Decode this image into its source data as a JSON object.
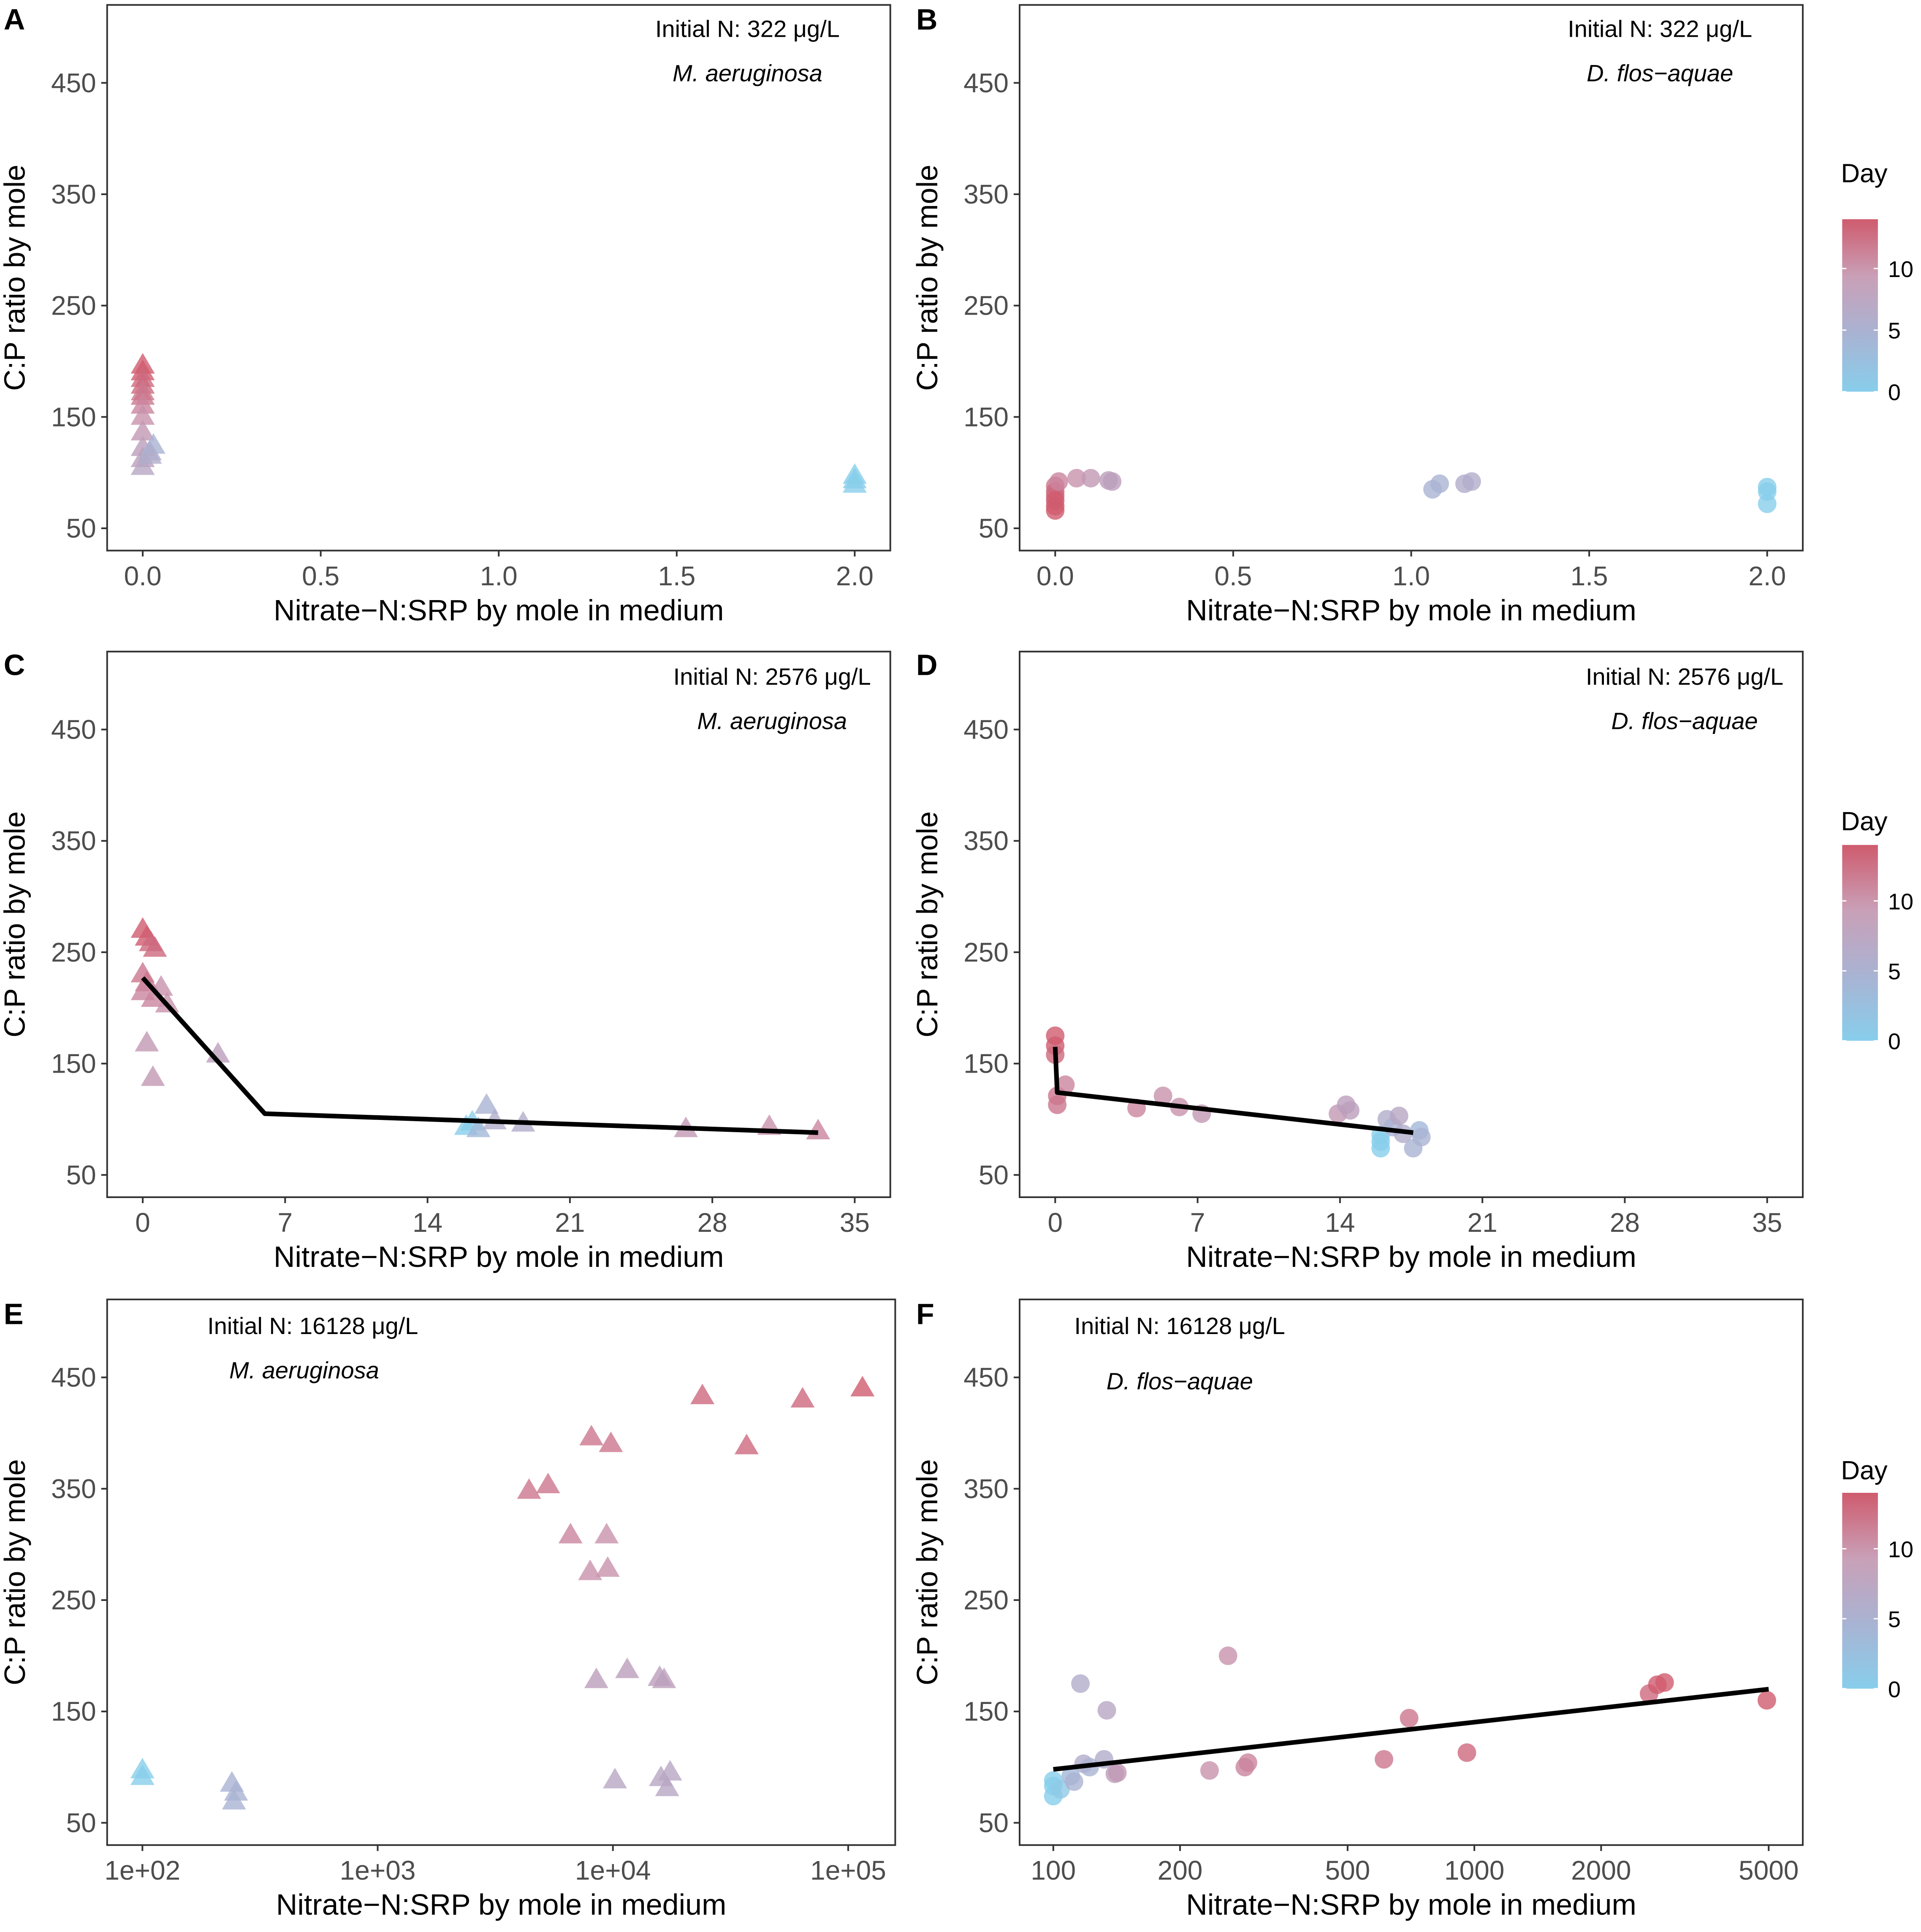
{
  "figure": {
    "legend_title": "Day",
    "legend_ticks": [
      "0",
      "5",
      "10"
    ],
    "legend_colors": [
      "#87ceeb",
      "#a9b3d3",
      "#c9a0b7",
      "#cf5b6e"
    ],
    "axis_color": "#333333",
    "line_color": "#000000"
  },
  "chart_data": [
    {
      "id": "A",
      "type": "scatter",
      "marker": "triangle",
      "x_scale": "linear",
      "xlim": [
        -0.1,
        2.1
      ],
      "ylim": [
        30,
        520
      ],
      "xticks": [
        0,
        0.5,
        1,
        1.5,
        2
      ],
      "xtick_labels": [
        "0.0",
        "0.5",
        "1.0",
        "1.5",
        "2.0"
      ],
      "yticks": [
        50,
        150,
        250,
        350,
        450
      ],
      "ytick_labels": [
        "50",
        "150",
        "250",
        "350",
        "450"
      ],
      "xlabel": "Nitrate−N:SRP by mole in medium",
      "ylabel": "C:P ratio by mole",
      "annotation_n": "Initial N: 322 μg/L",
      "annotation_species": "M. aeruginosa",
      "points": [
        [
          0.0,
          196,
          14
        ],
        [
          0.0,
          190,
          14
        ],
        [
          0.0,
          184,
          13
        ],
        [
          0.0,
          178,
          13
        ],
        [
          0.0,
          172,
          12
        ],
        [
          0.0,
          168,
          12
        ],
        [
          0.0,
          160,
          11
        ],
        [
          0.0,
          150,
          10
        ],
        [
          0.0,
          136,
          9
        ],
        [
          0.0,
          122,
          8
        ],
        [
          0.0,
          112,
          8
        ],
        [
          0.0,
          105,
          7
        ],
        [
          0.02,
          118,
          6
        ],
        [
          0.03,
          124,
          5
        ],
        [
          0.02,
          115,
          6
        ],
        [
          2.0,
          97,
          0
        ],
        [
          2.0,
          93,
          0
        ],
        [
          2.0,
          89,
          0
        ]
      ],
      "fit_line": []
    },
    {
      "id": "B",
      "type": "scatter",
      "marker": "circle",
      "x_scale": "linear",
      "xlim": [
        -0.1,
        2.1
      ],
      "ylim": [
        30,
        520
      ],
      "xticks": [
        0,
        0.5,
        1,
        1.5,
        2
      ],
      "xtick_labels": [
        "0.0",
        "0.5",
        "1.0",
        "1.5",
        "2.0"
      ],
      "yticks": [
        50,
        150,
        250,
        350,
        450
      ],
      "ytick_labels": [
        "50",
        "150",
        "250",
        "350",
        "450"
      ],
      "xlabel": "Nitrate−N:SRP by mole in medium",
      "ylabel": "C:P ratio by mole",
      "annotation_n": "Initial N: 322 μg/L",
      "annotation_species": "D. flos−aquae",
      "points": [
        [
          0.0,
          88,
          12
        ],
        [
          0.0,
          83,
          13
        ],
        [
          0.0,
          79,
          13
        ],
        [
          0.0,
          75,
          14
        ],
        [
          0.0,
          70,
          14
        ],
        [
          0.0,
          66,
          14
        ],
        [
          0.01,
          92,
          11
        ],
        [
          0.06,
          95,
          10
        ],
        [
          0.1,
          95,
          9
        ],
        [
          0.15,
          93,
          8
        ],
        [
          0.16,
          92,
          8
        ],
        [
          1.06,
          85,
          5
        ],
        [
          1.08,
          90,
          5
        ],
        [
          1.15,
          90,
          6
        ],
        [
          1.17,
          92,
          6
        ],
        [
          2.0,
          87,
          0
        ],
        [
          2.0,
          83,
          0
        ],
        [
          2.0,
          72,
          0
        ]
      ],
      "fit_line": []
    },
    {
      "id": "C",
      "type": "scatter",
      "marker": "triangle",
      "x_scale": "linear",
      "xlim": [
        -1.75,
        36.75
      ],
      "ylim": [
        30,
        520
      ],
      "xticks": [
        0,
        7,
        14,
        21,
        28,
        35
      ],
      "xtick_labels": [
        "0",
        "7",
        "14",
        "21",
        "28",
        "35"
      ],
      "yticks": [
        50,
        150,
        250,
        350,
        450
      ],
      "ytick_labels": [
        "50",
        "150",
        "250",
        "350",
        "450"
      ],
      "xlabel": "Nitrate−N:SRP by mole in medium",
      "ylabel": "C:P ratio by mole",
      "annotation_n": "Initial N: 2576 μg/L",
      "annotation_species": "M. aeruginosa",
      "points": [
        [
          0.0,
          270,
          14
        ],
        [
          0.2,
          263,
          14
        ],
        [
          0.4,
          258,
          13
        ],
        [
          0.6,
          253,
          13
        ],
        [
          0.0,
          230,
          12
        ],
        [
          0.2,
          222,
          12
        ],
        [
          0.0,
          214,
          11
        ],
        [
          0.5,
          208,
          11
        ],
        [
          0.9,
          218,
          10
        ],
        [
          1.2,
          203,
          10
        ],
        [
          0.2,
          168,
          9
        ],
        [
          0.5,
          137,
          9
        ],
        [
          3.7,
          158,
          8
        ],
        [
          15.9,
          93,
          0
        ],
        [
          16.2,
          97,
          0
        ],
        [
          16.5,
          91,
          4
        ],
        [
          16.9,
          112,
          5
        ],
        [
          17.3,
          98,
          6
        ],
        [
          18.7,
          96,
          6
        ],
        [
          26.7,
          91,
          9
        ],
        [
          30.8,
          93,
          10
        ],
        [
          33.2,
          89,
          11
        ]
      ],
      "fit_line": [
        [
          0,
          227
        ],
        [
          6,
          105
        ],
        [
          33.2,
          88
        ]
      ]
    },
    {
      "id": "D",
      "type": "scatter",
      "marker": "circle",
      "x_scale": "linear",
      "xlim": [
        -1.75,
        36.75
      ],
      "ylim": [
        30,
        520
      ],
      "xticks": [
        0,
        7,
        14,
        21,
        28,
        35
      ],
      "xtick_labels": [
        "0",
        "7",
        "14",
        "21",
        "28",
        "35"
      ],
      "yticks": [
        50,
        150,
        250,
        350,
        450
      ],
      "ytick_labels": [
        "50",
        "150",
        "250",
        "350",
        "450"
      ],
      "xlabel": "Nitrate−N:SRP by mole in medium",
      "ylabel": "C:P ratio by mole",
      "annotation_n": "Initial N: 2576 μg/L",
      "annotation_species": "D. flos−aquae",
      "points": [
        [
          0.0,
          175,
          14
        ],
        [
          0.0,
          166,
          14
        ],
        [
          0.0,
          158,
          13
        ],
        [
          0.1,
          121,
          12
        ],
        [
          0.1,
          113,
          12
        ],
        [
          0.5,
          131,
          11
        ],
        [
          4.0,
          110,
          11
        ],
        [
          5.3,
          121,
          10
        ],
        [
          6.1,
          111,
          10
        ],
        [
          7.2,
          105,
          9
        ],
        [
          13.9,
          105,
          9
        ],
        [
          14.3,
          113,
          8
        ],
        [
          14.5,
          108,
          8
        ],
        [
          16.0,
          86,
          0
        ],
        [
          16.0,
          80,
          0
        ],
        [
          16.0,
          74,
          0
        ],
        [
          16.3,
          100,
          6
        ],
        [
          16.6,
          93,
          5
        ],
        [
          16.9,
          103,
          7
        ],
        [
          17.1,
          87,
          6
        ],
        [
          17.6,
          74,
          5
        ],
        [
          17.9,
          90,
          4
        ],
        [
          18.0,
          84,
          5
        ]
      ],
      "fit_line": [
        [
          0,
          165
        ],
        [
          0.1,
          124
        ],
        [
          17.6,
          88
        ]
      ]
    },
    {
      "id": "E",
      "type": "scatter",
      "marker": "triangle",
      "x_scale": "log",
      "xlim_log10": [
        1.85,
        5.2
      ],
      "ylim": [
        30,
        520
      ],
      "xticks": [
        100,
        1000,
        10000,
        100000
      ],
      "xtick_labels": [
        "1e+02",
        "1e+03",
        "1e+04",
        "1e+05"
      ],
      "yticks": [
        50,
        150,
        250,
        350,
        450
      ],
      "ytick_labels": [
        "50",
        "150",
        "250",
        "350",
        "450"
      ],
      "xlabel": "Nitrate−N:SRP by mole in medium",
      "ylabel": "C:P ratio by mole",
      "annotation_n": "Initial N: 16128 μg/L",
      "annotation_species": "M. aeruginosa",
      "points": [
        [
          100,
          97,
          0
        ],
        [
          100,
          91,
          0
        ],
        [
          240,
          85,
          5
        ],
        [
          250,
          77,
          5
        ],
        [
          245,
          69,
          5
        ],
        [
          4400,
          348,
          12
        ],
        [
          5300,
          353,
          12
        ],
        [
          6600,
          308,
          11
        ],
        [
          8000,
          275,
          10
        ],
        [
          8100,
          396,
          12
        ],
        [
          8500,
          178,
          8
        ],
        [
          9400,
          308,
          10
        ],
        [
          9500,
          278,
          10
        ],
        [
          9800,
          390,
          12
        ],
        [
          10200,
          88,
          7
        ],
        [
          11500,
          187,
          8
        ],
        [
          15800,
          180,
          8
        ],
        [
          16500,
          178,
          8
        ],
        [
          16000,
          90,
          7
        ],
        [
          17500,
          95,
          7
        ],
        [
          17000,
          81,
          7
        ],
        [
          24000,
          433,
          13
        ],
        [
          37000,
          388,
          13
        ],
        [
          64000,
          430,
          13
        ],
        [
          115000,
          440,
          14
        ]
      ],
      "fit_line": []
    },
    {
      "id": "F",
      "type": "scatter",
      "marker": "circle",
      "x_scale": "log",
      "xlim_log10": [
        1.92,
        3.78
      ],
      "ylim": [
        30,
        520
      ],
      "xticks": [
        100,
        200,
        500,
        1000,
        2000,
        5000
      ],
      "xtick_labels": [
        "100",
        "200",
        "500",
        "1000",
        "2000",
        "5000"
      ],
      "yticks": [
        50,
        150,
        250,
        350,
        450
      ],
      "ytick_labels": [
        "50",
        "150",
        "250",
        "350",
        "450"
      ],
      "xlabel": "Nitrate−N:SRP by mole in medium",
      "ylabel": "C:P ratio by mole",
      "annotation_n": "Initial N: 16128 μg/L",
      "annotation_species": "D. flos−aquae",
      "points": [
        [
          100,
          88,
          0
        ],
        [
          100,
          83,
          0
        ],
        [
          100,
          74,
          0
        ],
        [
          104,
          80,
          1
        ],
        [
          110,
          92,
          4
        ],
        [
          112,
          87,
          5
        ],
        [
          116,
          175,
          6
        ],
        [
          118,
          103,
          6
        ],
        [
          122,
          100,
          5
        ],
        [
          132,
          107,
          6
        ],
        [
          134,
          151,
          7
        ],
        [
          140,
          94,
          8
        ],
        [
          142,
          95,
          9
        ],
        [
          235,
          97,
          10
        ],
        [
          260,
          200,
          10
        ],
        [
          285,
          100,
          11
        ],
        [
          290,
          104,
          11
        ],
        [
          610,
          107,
          12
        ],
        [
          700,
          144,
          12
        ],
        [
          960,
          113,
          13
        ],
        [
          2600,
          166,
          13
        ],
        [
          2720,
          174,
          14
        ],
        [
          2830,
          176,
          14
        ],
        [
          4950,
          160,
          14
        ]
      ],
      "fit_line": [
        [
          100,
          98
        ],
        [
          5000,
          170
        ]
      ]
    }
  ]
}
